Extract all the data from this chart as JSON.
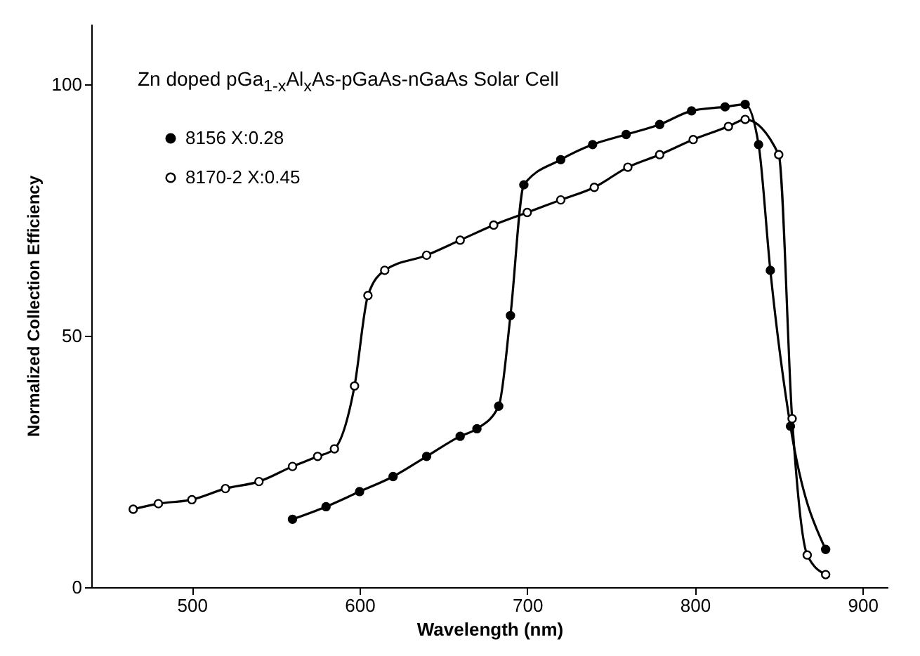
{
  "chart_data": {
    "type": "line",
    "title": "Zn doped pGa$_{1-x}$Al$_{x}$As-pGaAs-nGaAs Solar Cell",
    "xlabel": "Wavelength (nm)",
    "ylabel": "Normalized Collection Efficiency",
    "xlim": [
      440,
      915
    ],
    "ylim": [
      0,
      112
    ],
    "xticks": [
      500,
      600,
      700,
      800,
      900
    ],
    "yticks": [
      0,
      50,
      100
    ],
    "grid": false,
    "legend": "top left",
    "marker": "circle",
    "series": [
      {
        "name": "8156  X:0.28",
        "color": "#000000",
        "x": [
          560,
          580,
          600,
          620,
          640,
          660,
          670,
          683,
          690,
          698,
          720,
          739,
          759,
          779,
          798,
          818,
          830,
          838,
          845,
          857,
          878
        ],
        "values": [
          13.5,
          16,
          19,
          22,
          26,
          30,
          31.5,
          36,
          54,
          80,
          85,
          88,
          90,
          92,
          94.7,
          95.5,
          96,
          88,
          63,
          32,
          7.5
        ]
      },
      {
        "name": "8170-2  X:0.45",
        "color": "#000000",
        "x": [
          465,
          480,
          500,
          520,
          540,
          560,
          575,
          585,
          597,
          605,
          615,
          640,
          660,
          680,
          700,
          720,
          740,
          760,
          779,
          799,
          820,
          830,
          850,
          858,
          867,
          878
        ],
        "values": [
          15.5,
          16.6,
          17.4,
          19.6,
          21,
          24,
          26,
          27.5,
          40,
          58,
          63,
          66,
          69,
          72,
          74.5,
          77,
          79.5,
          83.5,
          86,
          89,
          91.6,
          93,
          86,
          33.5,
          6.4,
          2.5
        ]
      }
    ]
  }
}
